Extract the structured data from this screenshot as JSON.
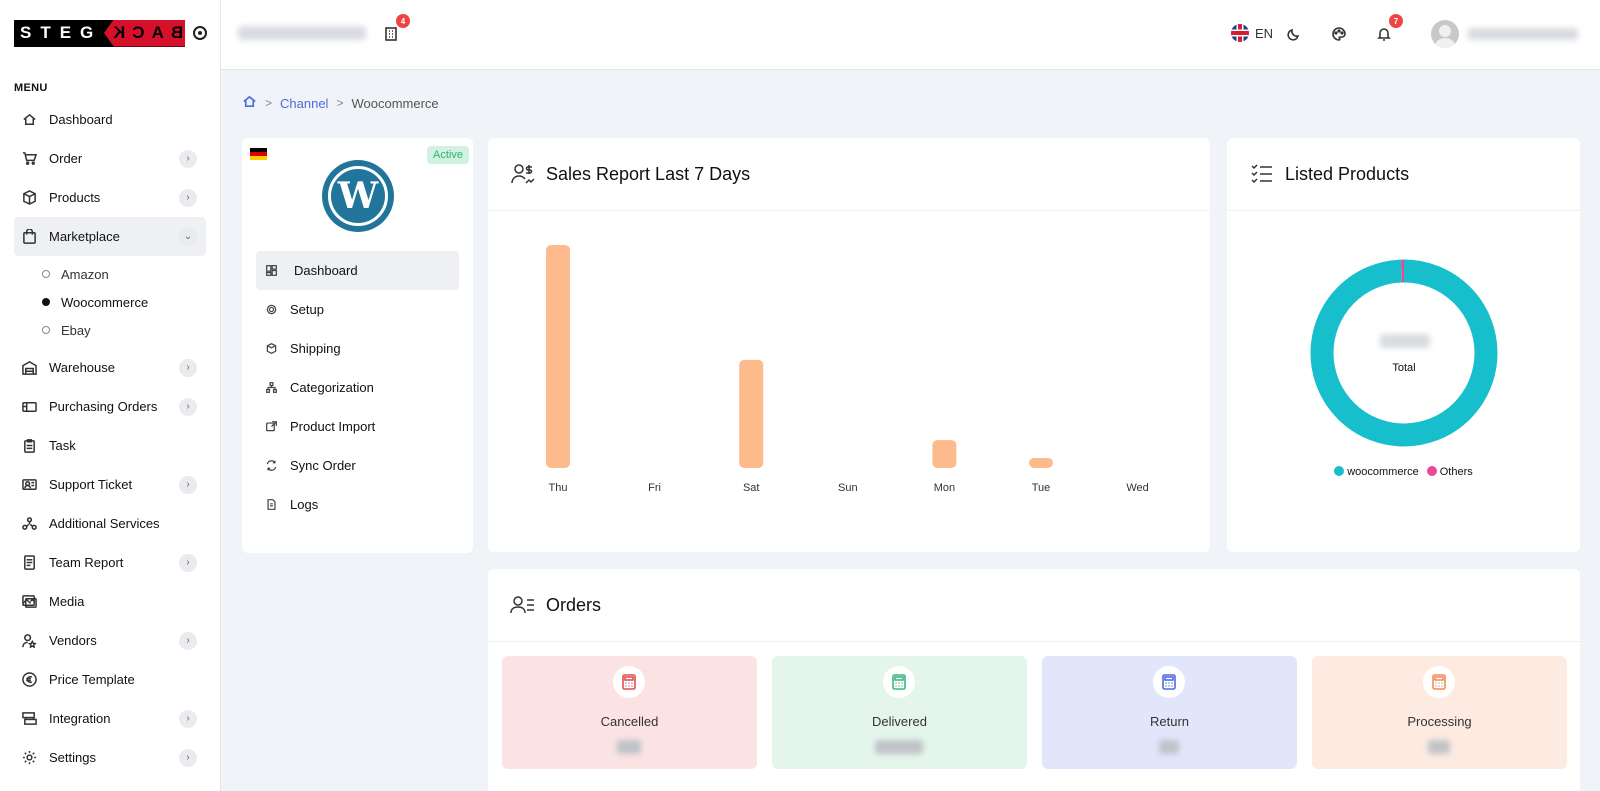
{
  "brand": {
    "left": "STEG",
    "right": "BACK"
  },
  "menu_title": "MENU",
  "sidebar": {
    "items": [
      {
        "label": "Dashboard",
        "icon": "home-icon",
        "chevron": false
      },
      {
        "label": "Order",
        "icon": "cart-icon",
        "chevron": true
      },
      {
        "label": "Products",
        "icon": "box-icon",
        "chevron": true
      },
      {
        "label": "Marketplace",
        "icon": "bag-icon",
        "chevron": true,
        "expanded": true
      },
      {
        "label": "Warehouse",
        "icon": "warehouse-icon",
        "chevron": true
      },
      {
        "label": "Purchasing Orders",
        "icon": "purchase-icon",
        "chevron": true
      },
      {
        "label": "Task",
        "icon": "clipboard-icon",
        "chevron": false
      },
      {
        "label": "Support Ticket",
        "icon": "ticket-icon",
        "chevron": true
      },
      {
        "label": "Additional Services",
        "icon": "services-icon",
        "chevron": false
      },
      {
        "label": "Team Report",
        "icon": "report-icon",
        "chevron": true
      },
      {
        "label": "Media",
        "icon": "media-icon",
        "chevron": false
      },
      {
        "label": "Vendors",
        "icon": "vendors-icon",
        "chevron": true
      },
      {
        "label": "Price Template",
        "icon": "euro-icon",
        "chevron": false
      },
      {
        "label": "Integration",
        "icon": "integration-icon",
        "chevron": true
      },
      {
        "label": "Settings",
        "icon": "gear-icon",
        "chevron": true
      }
    ],
    "marketplace_sub": [
      {
        "label": "Amazon",
        "active": false
      },
      {
        "label": "Woocommerce",
        "active": true
      },
      {
        "label": "Ebay",
        "active": false
      }
    ]
  },
  "header": {
    "warehouse_badge": "4",
    "language": "EN",
    "notifications_badge": "7"
  },
  "breadcrumb": {
    "channel": "Channel",
    "current": "Woocommerce"
  },
  "channel_card": {
    "status": "Active",
    "nav": [
      {
        "label": "Dashboard",
        "icon": "dashboard-icon",
        "active": true
      },
      {
        "label": "Setup",
        "icon": "setup-icon",
        "active": false
      },
      {
        "label": "Shipping",
        "icon": "shipping-icon",
        "active": false
      },
      {
        "label": "Categorization",
        "icon": "categorization-icon",
        "active": false
      },
      {
        "label": "Product Import",
        "icon": "import-icon",
        "active": false
      },
      {
        "label": "Sync Order",
        "icon": "sync-icon",
        "active": false
      },
      {
        "label": "Logs",
        "icon": "logs-icon",
        "active": false
      }
    ]
  },
  "sales": {
    "title": "Sales Report Last 7 Days",
    "chart_data": {
      "type": "bar",
      "categories": [
        "Thu",
        "Fri",
        "Sat",
        "Sun",
        "Mon",
        "Tue",
        "Wed"
      ],
      "values": [
        100,
        0,
        48.5,
        0,
        12.5,
        4.5,
        0
      ],
      "ylim": [
        0,
        100
      ],
      "bar_color": "#fdba8c",
      "grid": false
    }
  },
  "listed": {
    "title": "Listed Products",
    "total_label": "Total",
    "chart_data": {
      "type": "pie",
      "donut": true,
      "categories": [
        "woocommerce",
        "Others"
      ],
      "values": [
        99.5,
        0.5
      ],
      "colors": [
        "#17bfcc",
        "#ec4899"
      ],
      "legend": "bottom"
    }
  },
  "orders": {
    "title": "Orders",
    "stats": [
      {
        "label": "Cancelled",
        "bg": "#fbe3e3",
        "accent": "#e04f4f"
      },
      {
        "label": "Delivered",
        "bg": "#e4f6ec",
        "accent": "#3bb77e"
      },
      {
        "label": "Return",
        "bg": "#e2e6fb",
        "accent": "#4f6bdc"
      },
      {
        "label": "Processing",
        "bg": "#fdebe2",
        "accent": "#f08c5a"
      }
    ]
  }
}
